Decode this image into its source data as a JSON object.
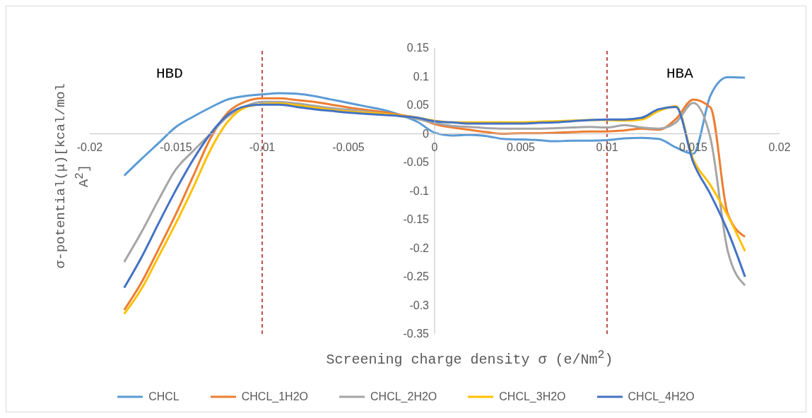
{
  "chart_data": {
    "type": "line",
    "xlabel": "Screening charge density σ (e/Nm$^{2}$)",
    "ylabel": "σ-potential(μ)[kcal/mol A$^{2}$]",
    "x": [
      -0.018,
      -0.017,
      -0.016,
      -0.015,
      -0.014,
      -0.013,
      -0.012,
      -0.011,
      -0.01,
      -0.009,
      -0.008,
      -0.007,
      -0.006,
      -0.005,
      -0.004,
      -0.003,
      -0.002,
      -0.001,
      0,
      0.001,
      0.002,
      0.003,
      0.004,
      0.005,
      0.006,
      0.007,
      0.008,
      0.009,
      0.01,
      0.011,
      0.012,
      0.013,
      0.014,
      0.015,
      0.016,
      0.017,
      0.018
    ],
    "series": [
      {
        "name": "CHCL",
        "color": "#5b9bd5",
        "values": [
          -0.073,
          -0.044,
          -0.016,
          0.012,
          0.03,
          0.046,
          0.06,
          0.066,
          0.069,
          0.071,
          0.07,
          0.066,
          0.06,
          0.054,
          0.048,
          0.042,
          0.033,
          0.021,
          0.002,
          -0.003,
          -0.002,
          -0.004,
          -0.009,
          -0.01,
          -0.011,
          -0.013,
          -0.012,
          -0.012,
          -0.011,
          -0.008,
          -0.007,
          -0.009,
          -0.024,
          -0.035,
          0.067,
          0.099,
          0.098
        ]
      },
      {
        "name": "CHCL_1H2O",
        "color": "#ed7d31",
        "values": [
          -0.308,
          -0.26,
          -0.201,
          -0.14,
          -0.074,
          -0.008,
          0.037,
          0.056,
          0.062,
          0.062,
          0.059,
          0.056,
          0.051,
          0.046,
          0.042,
          0.038,
          0.033,
          0.028,
          0.017,
          0.011,
          0.007,
          0.003,
          0,
          0.001,
          0.001,
          0.002,
          0.003,
          0.004,
          0.004,
          0.006,
          0.009,
          0.007,
          0.026,
          0.06,
          0.046,
          -0.14,
          -0.18
        ]
      },
      {
        "name": "CHCL_2H2O",
        "color": "#a5a5a5",
        "values": [
          -0.224,
          -0.172,
          -0.115,
          -0.062,
          -0.03,
          0,
          0.03,
          0.048,
          0.056,
          0.056,
          0.053,
          0.049,
          0.045,
          0.042,
          0.039,
          0.035,
          0.031,
          0.026,
          0.019,
          0.014,
          0.012,
          0.01,
          0.009,
          0.009,
          0.009,
          0.01,
          0.011,
          0.012,
          0.011,
          0.015,
          0.011,
          0.009,
          0.02,
          0.054,
          -0.008,
          -0.205,
          -0.265
        ]
      },
      {
        "name": "CHCL_3H2O",
        "color": "#ffc000",
        "values": [
          -0.315,
          -0.271,
          -0.214,
          -0.156,
          -0.094,
          -0.028,
          0.021,
          0.046,
          0.052,
          0.053,
          0.05,
          0.046,
          0.042,
          0.039,
          0.037,
          0.035,
          0.032,
          0.028,
          0.023,
          0.02,
          0.02,
          0.02,
          0.02,
          0.02,
          0.021,
          0.022,
          0.023,
          0.024,
          0.024,
          0.023,
          0.025,
          0.04,
          0.048,
          -0.045,
          -0.09,
          -0.143,
          -0.205
        ]
      },
      {
        "name": "CHCL_4H2O",
        "color": "#4472c4",
        "values": [
          -0.269,
          -0.216,
          -0.156,
          -0.098,
          -0.045,
          0,
          0.033,
          0.048,
          0.051,
          0.051,
          0.047,
          0.043,
          0.04,
          0.037,
          0.035,
          0.033,
          0.031,
          0.028,
          0.022,
          0.02,
          0.018,
          0.018,
          0.018,
          0.018,
          0.019,
          0.02,
          0.022,
          0.024,
          0.025,
          0.025,
          0.028,
          0.043,
          0.047,
          -0.05,
          -0.106,
          -0.17,
          -0.25
        ]
      }
    ],
    "xlim": [
      -0.02,
      0.02
    ],
    "xticks": [
      -0.02,
      -0.015,
      -0.01,
      -0.005,
      0,
      0.005,
      0.01,
      0.015,
      0.02
    ],
    "ylim": [
      -0.35,
      0.15
    ],
    "yticks": [
      -0.35,
      -0.3,
      -0.25,
      -0.2,
      -0.15,
      -0.1,
      -0.05,
      0,
      0.05,
      0.1,
      0.15
    ],
    "ref_lines": [
      {
        "axis": "x",
        "value": -0.01,
        "color": "#c0504d",
        "line_style": "dashed"
      },
      {
        "axis": "x",
        "value": 0.01,
        "color": "#c0504d",
        "line_style": "dashed"
      }
    ],
    "annotations": [
      "HBD",
      "HBA"
    ],
    "grid": false,
    "legend": "bottom",
    "marker": "none",
    "line_style": "solid"
  }
}
